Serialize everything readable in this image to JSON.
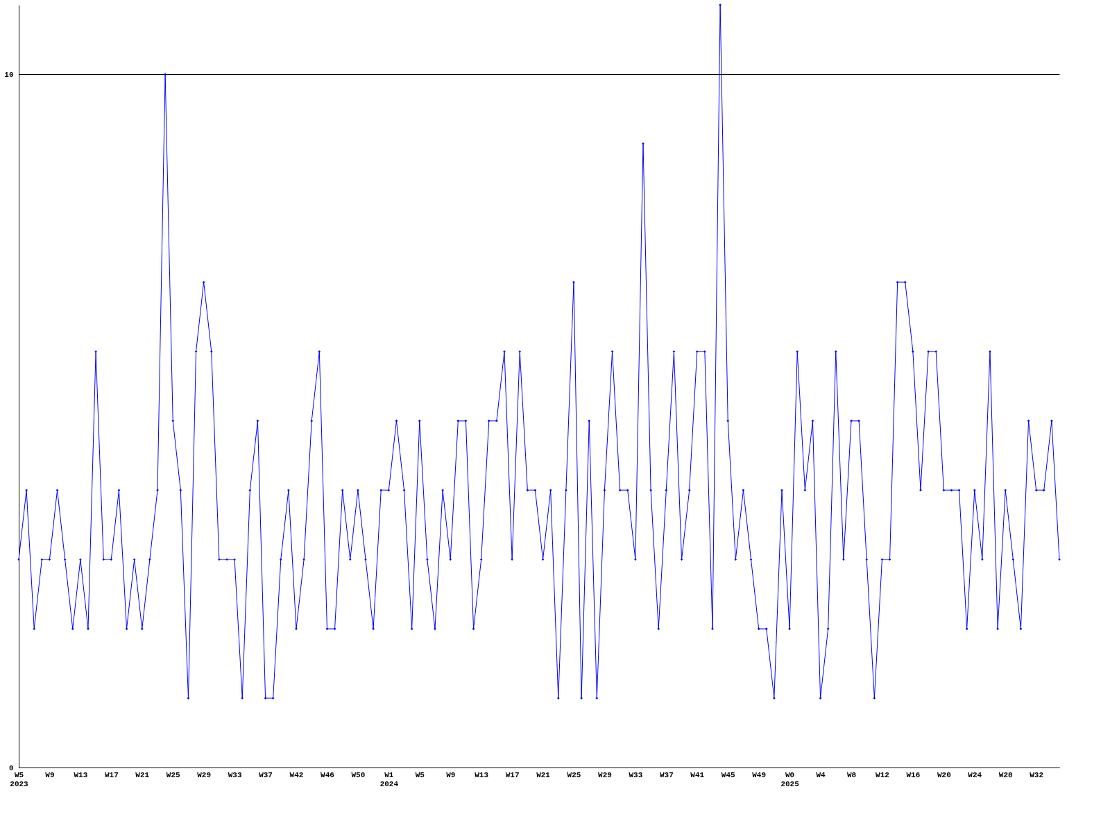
{
  "chart_data": {
    "type": "line",
    "categories": [
      "W5\n2023",
      null,
      null,
      null,
      "W9",
      null,
      null,
      null,
      "W13",
      null,
      null,
      null,
      "W17",
      null,
      null,
      null,
      "W21",
      null,
      null,
      null,
      "W25",
      null,
      null,
      null,
      "W29",
      null,
      null,
      null,
      "W33",
      null,
      null,
      null,
      "W37",
      null,
      null,
      null,
      "W42",
      null,
      null,
      null,
      "W46",
      null,
      null,
      null,
      "W50",
      null,
      null,
      null,
      "W1\n2024",
      null,
      null,
      null,
      "W5",
      null,
      null,
      null,
      "W9",
      null,
      null,
      null,
      "W13",
      null,
      null,
      null,
      "W17",
      null,
      null,
      null,
      "W21",
      null,
      null,
      null,
      "W25",
      null,
      null,
      null,
      "W29",
      null,
      null,
      null,
      "W33",
      null,
      null,
      null,
      "W37",
      null,
      null,
      null,
      "W41",
      null,
      null,
      null,
      "W45",
      null,
      null,
      null,
      "W49",
      null,
      null,
      null,
      "W0\n2025",
      null,
      null,
      null,
      "W4",
      null,
      null,
      null,
      "W8",
      null,
      null,
      null,
      "W12",
      null,
      null,
      null,
      "W16",
      null,
      null,
      null,
      "W20",
      null,
      null,
      null,
      "W24",
      null,
      null,
      null,
      "W28",
      null,
      null,
      null,
      "W32",
      null,
      null,
      null
    ],
    "series": [
      {
        "color": "#0000ff",
        "values": [
          3,
          4,
          2,
          3,
          3,
          4,
          3,
          2,
          3,
          2,
          6,
          3,
          3,
          4,
          2,
          3,
          2,
          3,
          4,
          10,
          5,
          4,
          1,
          6,
          7,
          6,
          3,
          3,
          3,
          1,
          4,
          5,
          1,
          1,
          3,
          4,
          2,
          3,
          5,
          6,
          2,
          2,
          4,
          3,
          4,
          3,
          2,
          4,
          4,
          5,
          4,
          2,
          5,
          3,
          2,
          4,
          3,
          5,
          5,
          2,
          3,
          5,
          5,
          6,
          3,
          6,
          4,
          4,
          3,
          4,
          1,
          4,
          7,
          1,
          5,
          1,
          4,
          6,
          4,
          4,
          3,
          9,
          4,
          2,
          4,
          6,
          3,
          4,
          6,
          6,
          2,
          11,
          5,
          3,
          4,
          3,
          2,
          2,
          1,
          4,
          2,
          6,
          4,
          5,
          1,
          2,
          6,
          3,
          5,
          5,
          3,
          1,
          3,
          3,
          7,
          7,
          6,
          4,
          6,
          6,
          4,
          4,
          4,
          2,
          4,
          3,
          6,
          2,
          4,
          3,
          2,
          5,
          4,
          4,
          5,
          3
        ]
      }
    ],
    "ylim": [
      0,
      11
    ],
    "yticks": [
      0,
      10
    ],
    "grid": "y",
    "marker": "diamond",
    "line_style": "solid"
  }
}
